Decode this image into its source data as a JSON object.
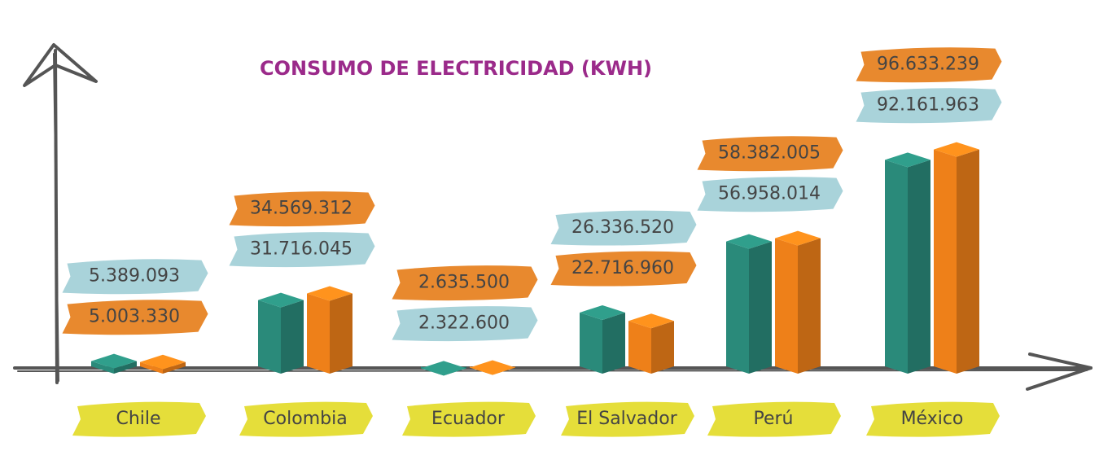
{
  "chart_data": {
    "type": "bar",
    "title": "CONSUMO DE ELECTRICIDAD (KWH)",
    "categories": [
      "Chile",
      "Colombia",
      "Ecuador",
      "El Salvador",
      "Perú",
      "México"
    ],
    "series": [
      {
        "color": "#2a8a7a",
        "values": [
          5389093,
          31716045,
          2322600,
          26336520,
          56958014,
          92161963
        ],
        "value_labels": [
          "5.389.093",
          "31.716.045",
          "2.322.600",
          "26.336.520",
          "56.958.014",
          "92.161.963"
        ]
      },
      {
        "color": "#ee8019",
        "values": [
          5003330,
          34569312,
          2635500,
          22716960,
          58382005,
          96633239
        ],
        "value_labels": [
          "5.003.330",
          "34.569.312",
          "2.635.500",
          "22.716.960",
          "58.382.005",
          "96.633.239"
        ]
      }
    ],
    "ylim": [
      0,
      100000000
    ]
  }
}
